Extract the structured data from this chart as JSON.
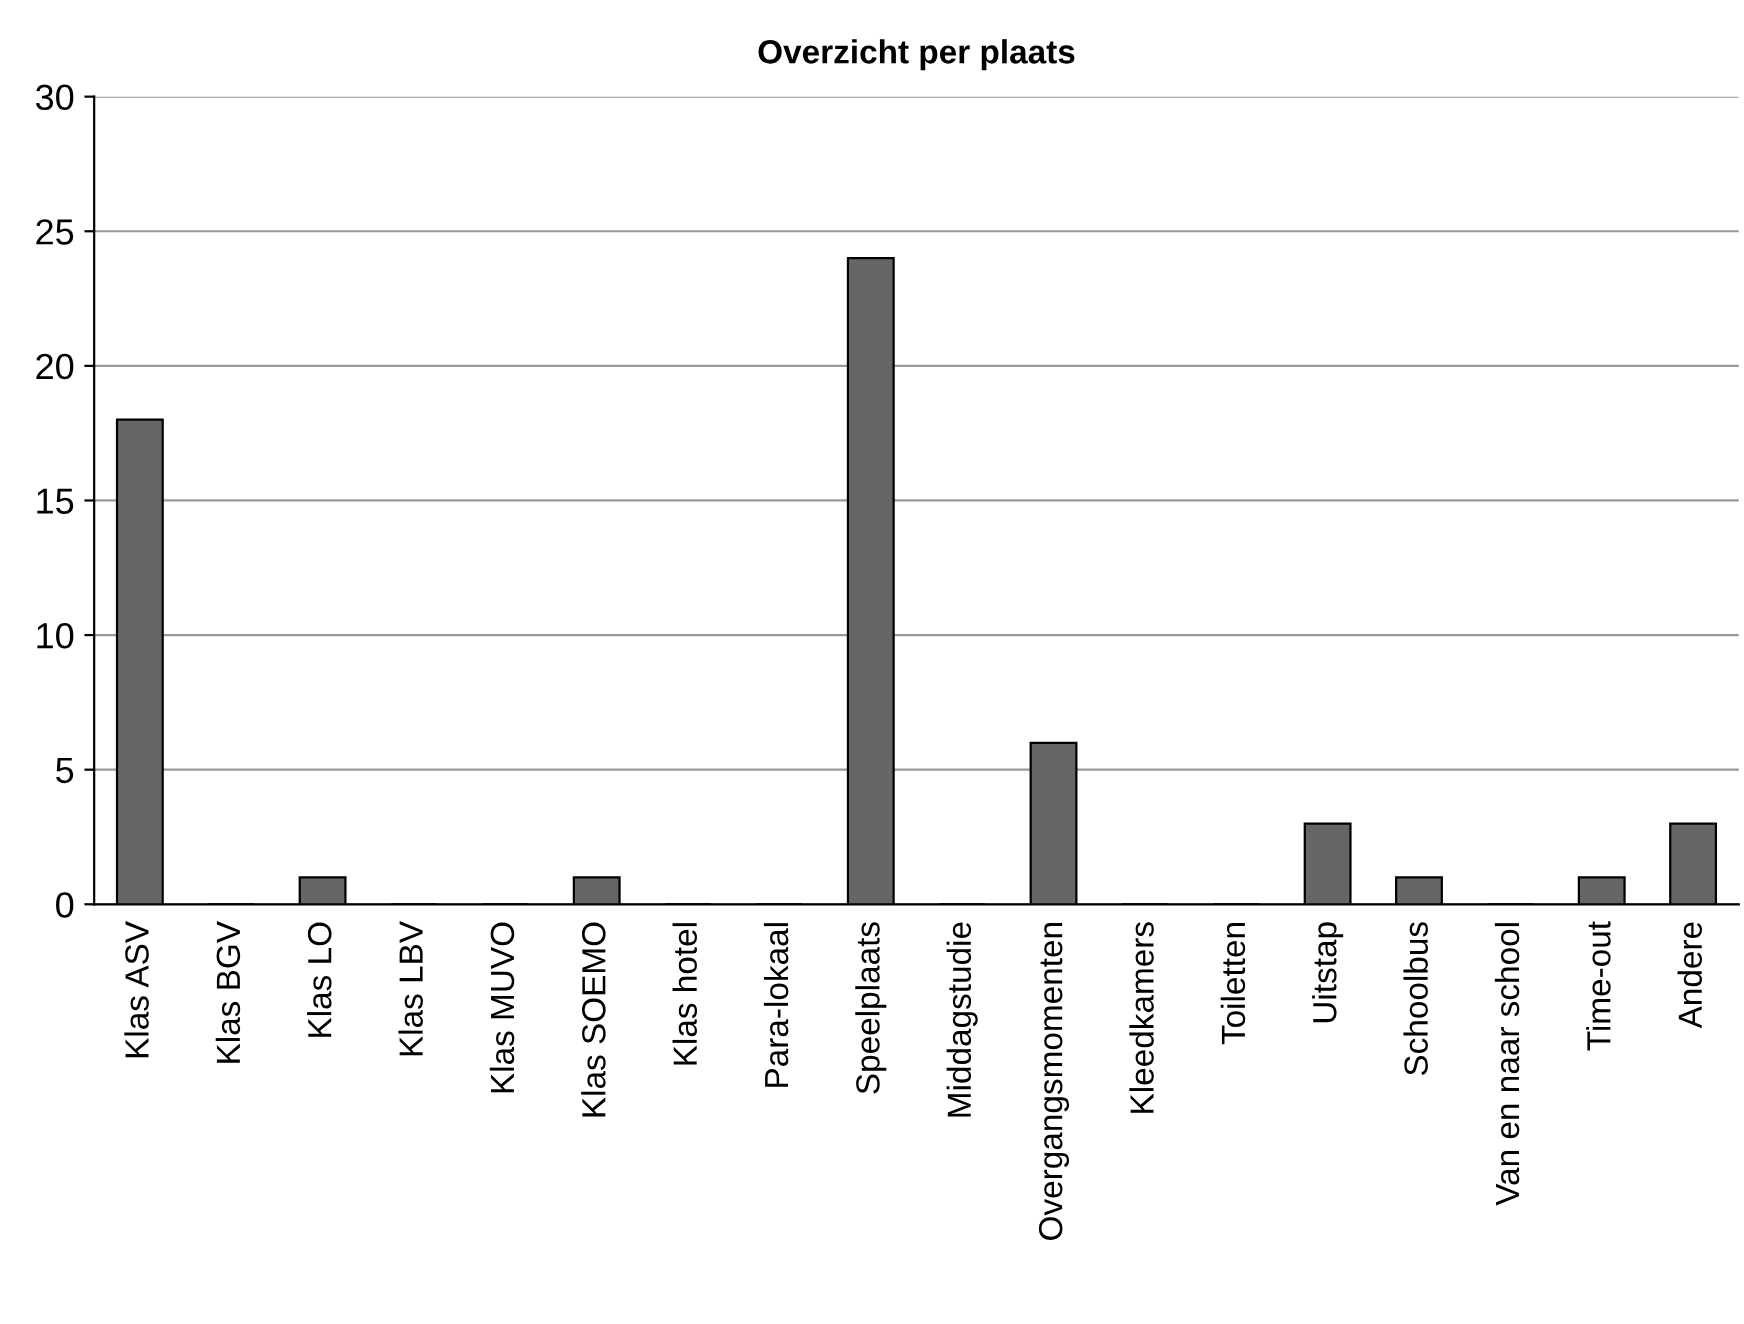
{
  "chart_data": {
    "type": "bar",
    "title": "Overzicht per plaats",
    "categories": [
      "Klas ASV",
      "Klas BGV",
      "Klas LO",
      "Klas LBV",
      "Klas MUVO",
      "Klas SOEMO",
      "Klas hotel",
      "Para-lokaal",
      "Speelplaats",
      "Middagstudie",
      "Overgangsmomenten",
      "Kleedkamers",
      "Toiletten",
      "Uitstap",
      "Schoolbus",
      "Van en naar school",
      "Time-out",
      "Andere"
    ],
    "values": [
      18,
      0,
      1,
      0,
      0,
      1,
      0,
      0,
      24,
      0,
      6,
      0,
      0,
      3,
      1,
      0,
      1,
      3
    ],
    "color": "#666666",
    "ylim": [
      0,
      30
    ],
    "yticks": [
      0,
      5,
      10,
      15,
      20,
      25,
      30
    ],
    "grid": "y",
    "legend": false
  }
}
